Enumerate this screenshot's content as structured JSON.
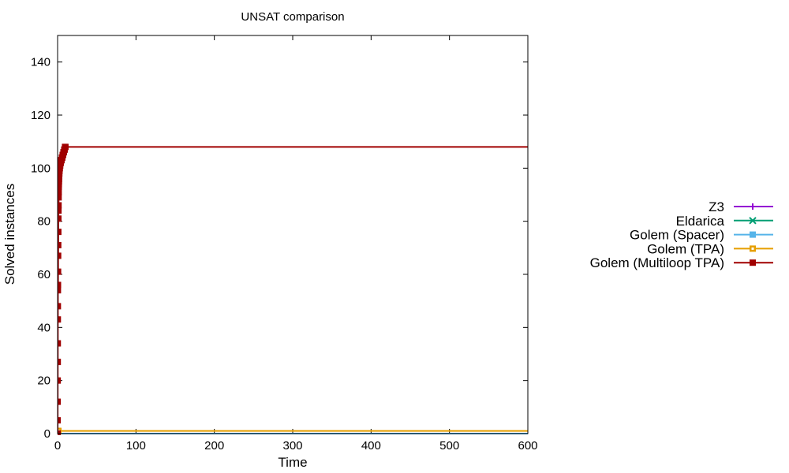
{
  "chart_data": {
    "type": "line",
    "title": "UNSAT comparison",
    "xlabel": "Time",
    "ylabel": "Solved instances",
    "xlim": [
      0,
      600
    ],
    "ylim": [
      0,
      150
    ],
    "xticks": [
      0,
      100,
      200,
      300,
      400,
      500,
      600
    ],
    "yticks": [
      0,
      20,
      40,
      60,
      80,
      100,
      120,
      140
    ],
    "grid": false,
    "legend_position": "right",
    "series": [
      {
        "name": "Z3",
        "color": "#9400d3",
        "marker": "plus",
        "x": [
          0,
          600
        ],
        "y": [
          0,
          0
        ]
      },
      {
        "name": "Eldarica",
        "color": "#009e73",
        "marker": "cross",
        "x": [
          0,
          600
        ],
        "y": [
          0,
          0
        ]
      },
      {
        "name": "Golem (Spacer)",
        "color": "#56b4e9",
        "marker": "square",
        "x": [
          0,
          600
        ],
        "y": [
          0,
          0
        ]
      },
      {
        "name": "Golem (TPA)",
        "color": "#e69f00",
        "marker": "square-open",
        "x": [
          0,
          0.2,
          0.5,
          1,
          600
        ],
        "y": [
          0,
          0,
          1,
          1,
          1
        ]
      },
      {
        "name": "Golem (Multiloop TPA)",
        "color": "#a00000",
        "marker": "square",
        "x": [
          0,
          0.05,
          0.1,
          0.15,
          0.2,
          0.25,
          0.3,
          0.35,
          0.4,
          0.5,
          0.6,
          0.7,
          0.8,
          0.9,
          1.0,
          1.1,
          1.2,
          1.3,
          1.4,
          1.5,
          1.6,
          1.7,
          1.8,
          2.0,
          2.2,
          2.4,
          2.6,
          2.8,
          3.0,
          3.3,
          3.6,
          4.0,
          4.5,
          5.0,
          5.5,
          6.0,
          6.5,
          7.0,
          7.5,
          8.0,
          8.5,
          9.0,
          9.5,
          10.0,
          600
        ],
        "y": [
          0,
          5,
          12,
          20,
          27,
          34,
          43,
          48,
          54,
          56,
          61,
          67,
          71,
          76,
          81,
          84,
          86,
          89,
          91,
          93,
          94,
          95,
          96,
          97,
          98,
          99,
          100,
          100,
          101,
          101,
          102,
          102,
          103,
          103,
          104,
          104,
          105,
          105,
          106,
          106,
          107,
          107,
          108,
          108,
          108
        ]
      }
    ]
  }
}
